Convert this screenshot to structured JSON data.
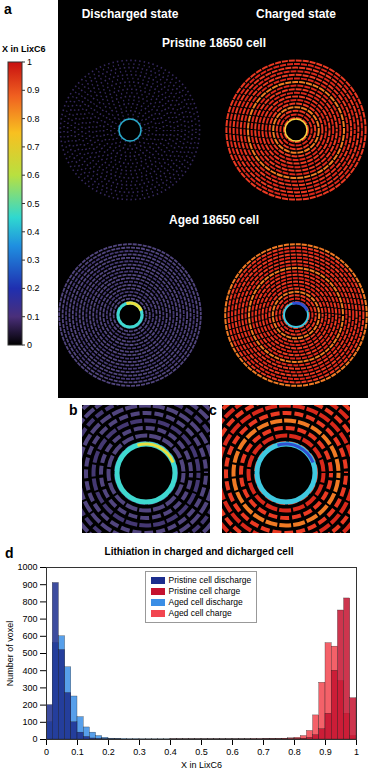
{
  "figure": {
    "panels": [
      "a",
      "b",
      "c",
      "d"
    ],
    "columns": [
      "Discharged state",
      "Charged state"
    ],
    "rows": [
      "Pristine 18650 cell",
      "Aged 18650 cell"
    ]
  },
  "colorbar": {
    "label": "X in LixC6",
    "range": [
      0,
      1
    ],
    "ticks": [
      0,
      0.1,
      0.2,
      0.3,
      0.4,
      0.5,
      0.6,
      0.7,
      0.8,
      0.9,
      1
    ]
  },
  "chart_data": {
    "type": "histogram",
    "title": "Lithiation in charged and dicharged cell",
    "x_label": "X in LixC6",
    "y_label": "Number of voxel",
    "bins": [
      0,
      0.02,
      0.04,
      0.06,
      0.08,
      0.1,
      0.12,
      0.14,
      0.16,
      0.18,
      0.2,
      0.22,
      0.24,
      0.26,
      0.28,
      0.3,
      0.32,
      0.34,
      0.36,
      0.38,
      0.4,
      0.42,
      0.44,
      0.46,
      0.48,
      0.5,
      0.52,
      0.54,
      0.56,
      0.58,
      0.6,
      0.62,
      0.64,
      0.66,
      0.68,
      0.7,
      0.72,
      0.74,
      0.76,
      0.78,
      0.8,
      0.82,
      0.84,
      0.86,
      0.88,
      0.9,
      0.92,
      0.94,
      0.96,
      0.98,
      1
    ],
    "series": [
      {
        "name": "Pristine cell discharge",
        "color": "#1b2d8e",
        "values": [
          200,
          910,
          520,
          270,
          100,
          40,
          15,
          6,
          3,
          2,
          1,
          1,
          0,
          0,
          0,
          0,
          0,
          0,
          0,
          0,
          0,
          0,
          0,
          0,
          0,
          0,
          0,
          0,
          0,
          0,
          0,
          0,
          0,
          0,
          0,
          0,
          0,
          0,
          0,
          0,
          0,
          0,
          0,
          0,
          0,
          0,
          0,
          0,
          0,
          0
        ]
      },
      {
        "name": "Pristine cell charge",
        "color": "#c4122f",
        "values": [
          0,
          0,
          0,
          0,
          0,
          0,
          0,
          0,
          0,
          0,
          0,
          0,
          0,
          0,
          0,
          0,
          0,
          0,
          0,
          0,
          0,
          0,
          0,
          0,
          0,
          0,
          0,
          0,
          0,
          0,
          0,
          0,
          0,
          0,
          0,
          1,
          1,
          1,
          2,
          2,
          3,
          5,
          10,
          25,
          60,
          150,
          400,
          750,
          820,
          240
        ]
      },
      {
        "name": "Aged cell discharge",
        "color": "#3a8ee6",
        "values": [
          100,
          560,
          600,
          420,
          250,
          130,
          70,
          40,
          20,
          10,
          5,
          4,
          3,
          2,
          2,
          1,
          1,
          1,
          1,
          1,
          1,
          1,
          1,
          1,
          1,
          1,
          1,
          1,
          1,
          1,
          1,
          1,
          1,
          1,
          1,
          1,
          1,
          1,
          1,
          0,
          0,
          0,
          0,
          0,
          0,
          0,
          0,
          0,
          0,
          0
        ]
      },
      {
        "name": "Aged cell charge",
        "color": "#f2454f",
        "values": [
          0,
          0,
          0,
          0,
          0,
          0,
          0,
          0,
          0,
          0,
          0,
          0,
          0,
          0,
          0,
          0,
          0,
          0,
          0,
          0,
          1,
          1,
          1,
          1,
          1,
          1,
          1,
          1,
          1,
          1,
          1,
          1,
          1,
          2,
          2,
          2,
          3,
          3,
          5,
          7,
          10,
          20,
          50,
          140,
          330,
          560,
          540,
          340,
          150,
          20
        ]
      }
    ],
    "xlim": [
      0,
      1
    ],
    "xticks": [
      0,
      0.1,
      0.2,
      0.3,
      0.4,
      0.5,
      0.6,
      0.7,
      0.8,
      0.9,
      1
    ],
    "ylim": [
      0,
      1000
    ],
    "yticks": [
      0,
      100,
      200,
      300,
      400,
      500,
      600,
      700,
      800,
      900,
      1000
    ],
    "legend": "top"
  }
}
